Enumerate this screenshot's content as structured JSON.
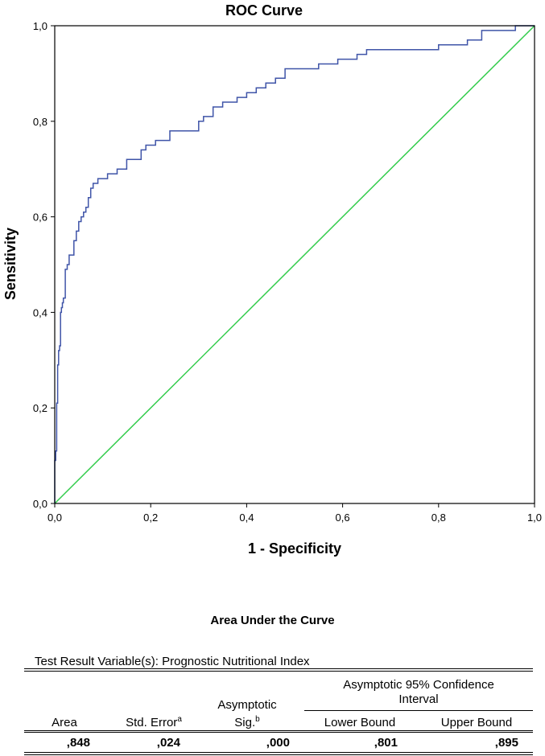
{
  "chart_data": {
    "type": "line",
    "title": "ROC Curve",
    "xlabel": "1 - Specificity",
    "ylabel": "Sensitivity",
    "xlim": [
      0,
      1
    ],
    "ylim": [
      0,
      1
    ],
    "xticks": [
      "0,0",
      "0,2",
      "0,4",
      "0,6",
      "0,8",
      "1,0"
    ],
    "yticks": [
      "0,0",
      "0,2",
      "0,4",
      "0,6",
      "0,8",
      "1,0"
    ],
    "grid": false,
    "series": [
      {
        "name": "Prognostic Nutritional Index",
        "color": "#3f54a8",
        "x": [
          0,
          0,
          0.002,
          0.002,
          0.004,
          0.004,
          0.006,
          0.006,
          0.008,
          0.008,
          0.01,
          0.01,
          0.012,
          0.012,
          0.014,
          0.014,
          0.016,
          0.016,
          0.018,
          0.018,
          0.022,
          0.022,
          0.026,
          0.026,
          0.03,
          0.03,
          0.04,
          0.04,
          0.045,
          0.045,
          0.05,
          0.05,
          0.055,
          0.055,
          0.06,
          0.06,
          0.065,
          0.065,
          0.07,
          0.07,
          0.075,
          0.075,
          0.08,
          0.08,
          0.09,
          0.09,
          0.11,
          0.11,
          0.13,
          0.13,
          0.15,
          0.15,
          0.18,
          0.18,
          0.19,
          0.19,
          0.21,
          0.21,
          0.24,
          0.24,
          0.3,
          0.3,
          0.31,
          0.31,
          0.33,
          0.33,
          0.35,
          0.35,
          0.38,
          0.38,
          0.4,
          0.4,
          0.42,
          0.42,
          0.44,
          0.44,
          0.46,
          0.46,
          0.48,
          0.48,
          0.55,
          0.55,
          0.59,
          0.59,
          0.63,
          0.63,
          0.65,
          0.65,
          0.8,
          0.8,
          0.86,
          0.86,
          0.89,
          0.89,
          0.96,
          0.96,
          1.0
        ],
        "y": [
          0,
          0.09,
          0.09,
          0.11,
          0.11,
          0.21,
          0.21,
          0.29,
          0.29,
          0.32,
          0.32,
          0.33,
          0.33,
          0.4,
          0.4,
          0.41,
          0.41,
          0.42,
          0.42,
          0.43,
          0.43,
          0.49,
          0.49,
          0.5,
          0.5,
          0.52,
          0.52,
          0.55,
          0.55,
          0.57,
          0.57,
          0.59,
          0.59,
          0.6,
          0.6,
          0.61,
          0.61,
          0.62,
          0.62,
          0.64,
          0.64,
          0.66,
          0.66,
          0.67,
          0.67,
          0.68,
          0.68,
          0.69,
          0.69,
          0.7,
          0.7,
          0.72,
          0.72,
          0.74,
          0.74,
          0.75,
          0.75,
          0.76,
          0.76,
          0.78,
          0.78,
          0.8,
          0.8,
          0.81,
          0.81,
          0.83,
          0.83,
          0.84,
          0.84,
          0.85,
          0.85,
          0.86,
          0.86,
          0.87,
          0.87,
          0.88,
          0.88,
          0.89,
          0.89,
          0.91,
          0.91,
          0.92,
          0.92,
          0.93,
          0.93,
          0.94,
          0.94,
          0.95,
          0.95,
          0.96,
          0.96,
          0.97,
          0.97,
          0.99,
          0.99,
          1.0,
          1.0
        ]
      },
      {
        "name": "Reference Line",
        "color": "#33cc4c",
        "x": [
          0,
          1
        ],
        "y": [
          0,
          1
        ]
      }
    ]
  },
  "auc_table": {
    "title": "Area Under the Curve",
    "subtitle": "Test Result Variable(s): Prognostic Nutritional Index",
    "headers": {
      "area": "Area",
      "std_error": "Std. Error",
      "std_error_sup": "a",
      "sig_line1": "Asymptotic",
      "sig_line2": "Sig.",
      "sig_sup": "b",
      "ci_line1": "Asymptotic 95% Confidence",
      "ci_line2": "Interval",
      "lower": "Lower Bound",
      "upper": "Upper Bound"
    },
    "row": {
      "area": ",848",
      "std_error": ",024",
      "sig": ",000",
      "lower": ",801",
      "upper": ",895"
    }
  }
}
